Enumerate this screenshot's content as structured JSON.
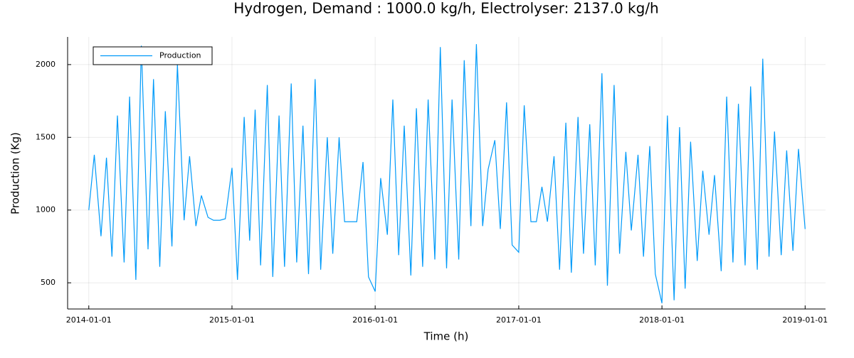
{
  "chart_data": {
    "type": "line",
    "title": "Hydrogen, Demand : 1000.0 kg/h, Electrolyser: 2137.0 kg/h",
    "x_label": "Time (h)",
    "y_label": "Production (Kg)",
    "x": [
      "2014-01-01",
      "2014-01-15",
      "2014-02-01",
      "2014-02-15",
      "2014-03-01",
      "2014-03-15",
      "2014-04-01",
      "2014-04-15",
      "2014-05-01",
      "2014-05-15",
      "2014-06-01",
      "2014-06-15",
      "2014-07-01",
      "2014-07-15",
      "2014-08-01",
      "2014-08-15",
      "2014-09-01",
      "2014-09-15",
      "2014-10-01",
      "2014-10-15",
      "2014-11-01",
      "2014-11-15",
      "2014-12-01",
      "2014-12-15",
      "2015-01-01",
      "2015-01-15",
      "2015-02-01",
      "2015-02-15",
      "2015-03-01",
      "2015-03-15",
      "2015-04-01",
      "2015-04-15",
      "2015-05-01",
      "2015-05-15",
      "2015-06-01",
      "2015-06-15",
      "2015-07-01",
      "2015-07-15",
      "2015-08-01",
      "2015-08-15",
      "2015-09-01",
      "2015-09-15",
      "2015-10-01",
      "2015-10-15",
      "2015-11-01",
      "2015-11-15",
      "2015-12-01",
      "2015-12-15",
      "2016-01-01",
      "2016-01-15",
      "2016-02-01",
      "2016-02-15",
      "2016-03-01",
      "2016-03-15",
      "2016-04-01",
      "2016-04-15",
      "2016-05-01",
      "2016-05-15",
      "2016-06-01",
      "2016-06-15",
      "2016-07-01",
      "2016-07-15",
      "2016-08-01",
      "2016-08-15",
      "2016-09-01",
      "2016-09-15",
      "2016-10-01",
      "2016-10-15",
      "2016-11-01",
      "2016-11-15",
      "2016-12-01",
      "2016-12-15",
      "2017-01-01",
      "2017-01-15",
      "2017-02-01",
      "2017-02-15",
      "2017-03-01",
      "2017-03-15",
      "2017-04-01",
      "2017-04-15",
      "2017-05-01",
      "2017-05-15",
      "2017-06-01",
      "2017-06-15",
      "2017-07-01",
      "2017-07-15",
      "2017-08-01",
      "2017-08-15",
      "2017-09-01",
      "2017-09-15",
      "2017-10-01",
      "2017-10-15",
      "2017-11-01",
      "2017-11-15",
      "2017-12-01",
      "2017-12-15",
      "2018-01-01",
      "2018-01-15",
      "2018-02-01",
      "2018-02-15",
      "2018-03-01",
      "2018-03-15",
      "2018-04-01",
      "2018-04-15",
      "2018-05-01",
      "2018-05-15",
      "2018-06-01",
      "2018-06-15",
      "2018-07-01",
      "2018-07-15",
      "2018-08-01",
      "2018-08-15",
      "2018-09-01",
      "2018-09-15",
      "2018-10-01",
      "2018-10-15",
      "2018-11-01",
      "2018-11-15",
      "2018-12-01",
      "2018-12-15",
      "2019-01-01"
    ],
    "series": [
      {
        "name": "Production",
        "color": "#009af9",
        "values": [
          1000,
          1380,
          820,
          1360,
          680,
          1650,
          640,
          1780,
          520,
          2130,
          730,
          1900,
          610,
          1680,
          750,
          2000,
          930,
          1370,
          890,
          1100,
          950,
          930,
          930,
          940,
          1290,
          520,
          1640,
          790,
          1690,
          620,
          1860,
          540,
          1650,
          610,
          1870,
          640,
          1580,
          560,
          1900,
          590,
          1500,
          700,
          1500,
          920,
          920,
          920,
          1330,
          540,
          440,
          1220,
          830,
          1760,
          690,
          1580,
          550,
          1700,
          610,
          1760,
          660,
          2120,
          600,
          1760,
          660,
          2030,
          890,
          2140,
          890,
          1280,
          1480,
          870,
          1740,
          760,
          710,
          1720,
          920,
          920,
          1160,
          920,
          1370,
          590,
          1600,
          570,
          1640,
          700,
          1590,
          620,
          1940,
          480,
          1860,
          700,
          1400,
          860,
          1380,
          680,
          1440,
          560,
          360,
          1650,
          380,
          1570,
          460,
          1470,
          650,
          1270,
          830,
          1240,
          580,
          1780,
          640,
          1730,
          620,
          1850,
          590,
          2040,
          680,
          1540,
          690,
          1410,
          720,
          1420,
          870
        ]
      }
    ],
    "xlim": [
      "2013-11-08",
      "2019-02-22"
    ],
    "xticks": [
      "2014-01-01",
      "2015-01-01",
      "2016-01-01",
      "2017-01-01",
      "2018-01-01",
      "2019-01-01"
    ],
    "ylim": [
      320,
      2190
    ],
    "yticks": [
      500,
      1000,
      1500,
      2000
    ],
    "grid": true,
    "legend": "top-left"
  }
}
